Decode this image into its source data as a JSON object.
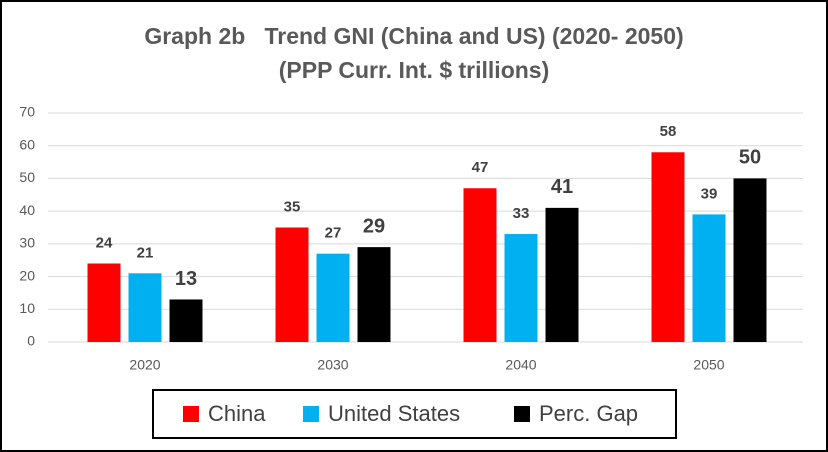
{
  "chart_data": {
    "type": "bar",
    "title": "Graph 2b   Trend GNI (China and US) (2020- 2050)",
    "subtitle": "(PPP Curr. Int. $ trillions)",
    "categories": [
      "2020",
      "2030",
      "2040",
      "2050"
    ],
    "series": [
      {
        "name": "China",
        "color": "#ff0000",
        "values": [
          24,
          35,
          47,
          58
        ]
      },
      {
        "name": "United States",
        "color": "#00b0f0",
        "values": [
          21,
          27,
          33,
          39
        ]
      },
      {
        "name": "Perc. Gap",
        "color": "#000000",
        "values": [
          13,
          29,
          41,
          50
        ]
      }
    ],
    "ylim": [
      0,
      70
    ],
    "yticks": [
      0,
      10,
      20,
      30,
      40,
      50,
      60,
      70
    ],
    "grid": true,
    "legend": "bottom"
  }
}
